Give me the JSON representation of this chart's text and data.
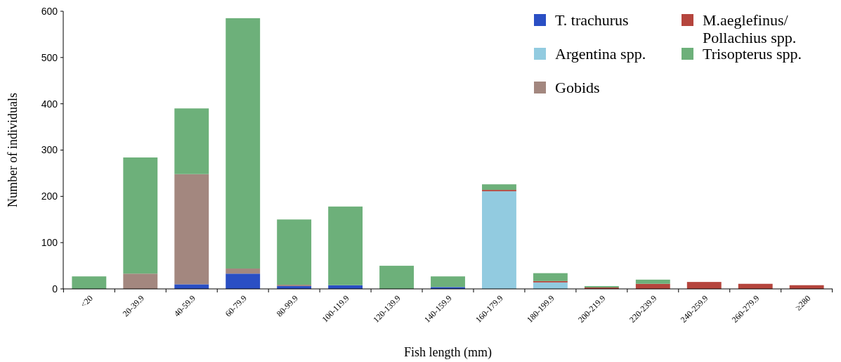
{
  "chart_data": {
    "type": "bar",
    "stacked": true,
    "xlabel": "Fish length (mm)",
    "ylabel": "Number of individuals",
    "categories": [
      "<20",
      "20-39.9",
      "40-59.9",
      "60-79.9",
      "80-99.9",
      "100-119.9",
      "120-139.9",
      "140-159.9",
      "160-179.9",
      "180-199.9",
      "200-219.9",
      "220-239.9",
      "240-259.9",
      "260-279.9",
      "≥280"
    ],
    "series": [
      {
        "name": "T. trachurus",
        "color": "#2a4fc4",
        "values": [
          0,
          0,
          10,
          33,
          6,
          8,
          0,
          4,
          0,
          0,
          0,
          0,
          0,
          0,
          0
        ]
      },
      {
        "name": "Argentina spp.",
        "color": "#92cbe0",
        "values": [
          0,
          0,
          0,
          0,
          0,
          0,
          0,
          0,
          211,
          14,
          0,
          0,
          0,
          0,
          0
        ]
      },
      {
        "name": "Gobids",
        "color": "#a3877f",
        "values": [
          0,
          33,
          238,
          11,
          3,
          0,
          0,
          0,
          0,
          0,
          0,
          0,
          0,
          0,
          0
        ]
      },
      {
        "name": "M.aeglefinus/ Pollachius spp.",
        "color": "#b5453d",
        "values": [
          0,
          0,
          0,
          0,
          0,
          0,
          0,
          0,
          3,
          3,
          3,
          11,
          15,
          11,
          8
        ]
      },
      {
        "name": "Trisopterus spp.",
        "color": "#6db07a",
        "values": [
          27,
          251,
          142,
          541,
          141,
          170,
          50,
          23,
          12,
          17,
          3,
          9,
          0,
          0,
          0
        ]
      }
    ],
    "ylim": [
      0,
      600
    ],
    "yticks": [
      0,
      100,
      200,
      300,
      400,
      500,
      600
    ],
    "grid": false,
    "legend": "top right"
  }
}
